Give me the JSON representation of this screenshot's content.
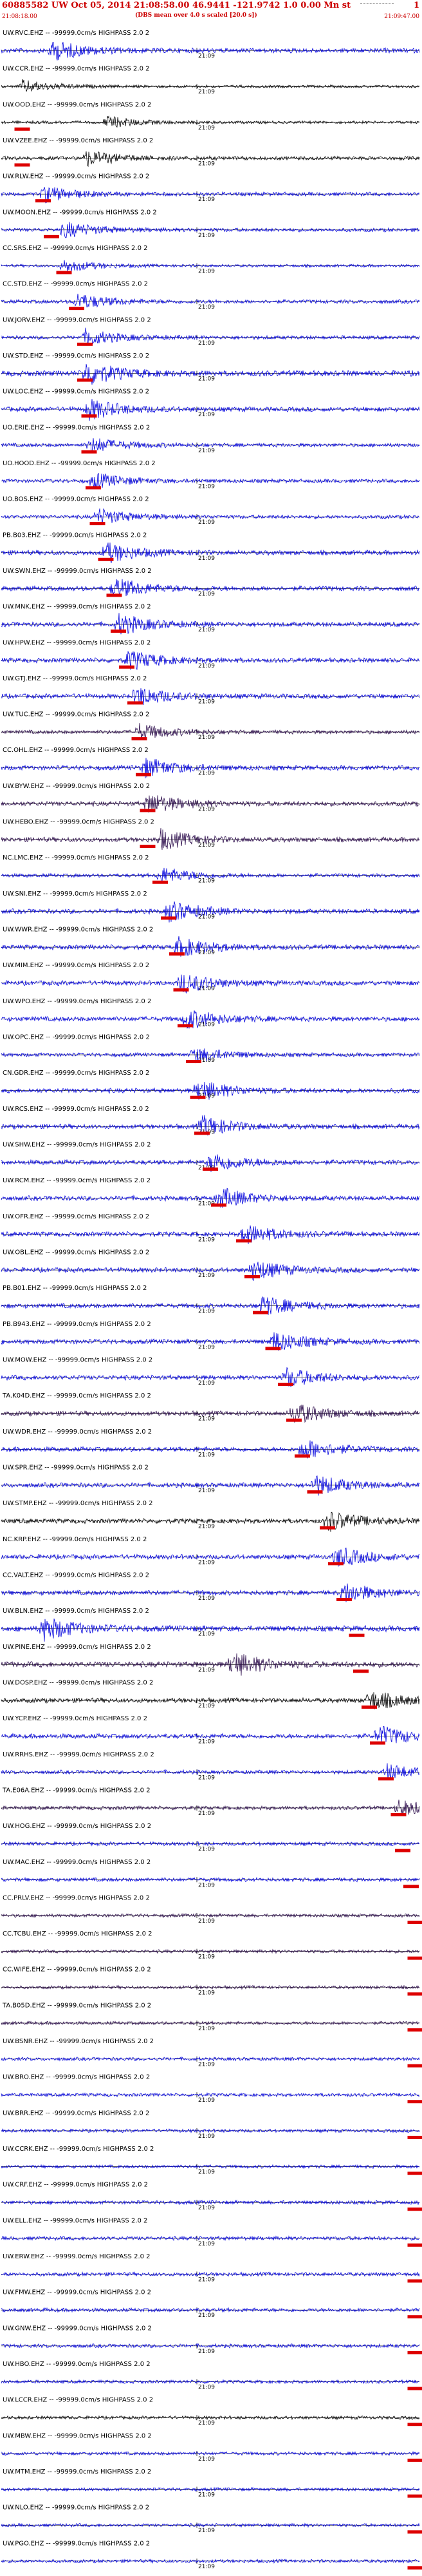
{
  "header": {
    "title": "60885582 UW Oct 05, 2014 21:08:58.00    46.9441  -121.9742   1.0 0.00 Mn st",
    "page": "1",
    "start_time": "21:08:18.00",
    "end_time": "21:09:47.00",
    "scale_note": "(DBS mean over 4.0 s scaled [20.0 s])"
  },
  "colors": {
    "blue": "#0000dd",
    "black": "#000000",
    "purple": "#2a0a4a",
    "red": "#dd0000"
  },
  "chart_data": {
    "type": "line",
    "title": "",
    "filter": "HIGHPASS 2.0 2",
    "time_mark": "21:09",
    "units": "-99999.0cm/s",
    "traces": [
      {
        "label": "UW.RVC.EHZ",
        "color": "blue",
        "amp": 0.5,
        "burst": 0.12,
        "pick": 0.0
      },
      {
        "label": "UW.CCR.EHZ",
        "color": "black",
        "amp": 0.3,
        "burst": 0.05,
        "pick": 0.0
      },
      {
        "label": "UW.OOD.EHZ",
        "color": "black",
        "amp": 0.3,
        "burst": 0.25,
        "pick": 0.05
      },
      {
        "label": "UW.VZEE.EHZ",
        "color": "black",
        "amp": 0.4,
        "burst": 0.2,
        "pick": 0.05
      },
      {
        "label": "UW.RLW.EHZ",
        "color": "blue",
        "amp": 0.4,
        "burst": 0.1,
        "pick": 0.1
      },
      {
        "label": "UW.MOON.EHZ",
        "color": "blue",
        "amp": 0.4,
        "burst": 0.15,
        "pick": 0.12
      },
      {
        "label": "CC.SRS.EHZ",
        "color": "blue",
        "amp": 0.3,
        "burst": 0.15,
        "pick": 0.15
      },
      {
        "label": "CC.STD.EHZ",
        "color": "blue",
        "amp": 0.4,
        "burst": 0.18,
        "pick": 0.18
      },
      {
        "label": "UW.JORV.EHZ",
        "color": "blue",
        "amp": 0.4,
        "burst": 0.2,
        "pick": 0.2
      },
      {
        "label": "UW.STD.EHZ",
        "color": "blue",
        "amp": 0.6,
        "burst": 0.2,
        "pick": 0.2
      },
      {
        "label": "UW.LOC.EHZ",
        "color": "blue",
        "amp": 0.5,
        "burst": 0.21,
        "pick": 0.21
      },
      {
        "label": "UO.ERIE.EHZ",
        "color": "blue",
        "amp": 0.4,
        "burst": 0.21,
        "pick": 0.21
      },
      {
        "label": "UO.HOOD.EHZ",
        "color": "blue",
        "amp": 0.4,
        "burst": 0.22,
        "pick": 0.22
      },
      {
        "label": "UO.BOS.EHZ",
        "color": "blue",
        "amp": 0.4,
        "burst": 0.23,
        "pick": 0.23
      },
      {
        "label": "PB.B03.EHZ",
        "color": "blue",
        "amp": 0.5,
        "burst": 0.25,
        "pick": 0.25
      },
      {
        "label": "UW.SWN.EHZ",
        "color": "blue",
        "amp": 0.5,
        "burst": 0.27,
        "pick": 0.27
      },
      {
        "label": "UW.MNK.EHZ",
        "color": "blue",
        "amp": 0.5,
        "burst": 0.28,
        "pick": 0.28
      },
      {
        "label": "UW.HPW.EHZ",
        "color": "blue",
        "amp": 0.5,
        "burst": 0.3,
        "pick": 0.3
      },
      {
        "label": "UW.GTJ.EHZ",
        "color": "blue",
        "amp": 0.5,
        "burst": 0.32,
        "pick": 0.32
      },
      {
        "label": "UW.TUC.EHZ",
        "color": "purple",
        "amp": 0.4,
        "burst": 0.33,
        "pick": 0.33
      },
      {
        "label": "CC.OHL.EHZ",
        "color": "blue",
        "amp": 0.5,
        "burst": 0.34,
        "pick": 0.34
      },
      {
        "label": "UW.BYW.EHZ",
        "color": "purple",
        "amp": 0.5,
        "burst": 0.35,
        "pick": 0.35
      },
      {
        "label": "UW.HEBO.EHZ",
        "color": "purple",
        "amp": 0.5,
        "burst": 0.38,
        "pick": 0.35
      },
      {
        "label": "NC.LMC.EHZ",
        "color": "blue",
        "amp": 0.4,
        "burst": 0.38,
        "pick": 0.38
      },
      {
        "label": "UW.SNI.EHZ",
        "color": "blue",
        "amp": 0.5,
        "burst": 0.4,
        "pick": 0.4
      },
      {
        "label": "UW.WWR.EHZ",
        "color": "blue",
        "amp": 0.5,
        "burst": 0.42,
        "pick": 0.42
      },
      {
        "label": "UW.MIM.EHZ",
        "color": "blue",
        "amp": 0.5,
        "burst": 0.43,
        "pick": 0.43
      },
      {
        "label": "UW.WPO.EHZ",
        "color": "blue",
        "amp": 0.5,
        "burst": 0.44,
        "pick": 0.44
      },
      {
        "label": "UW.OPC.EHZ",
        "color": "blue",
        "amp": 0.4,
        "burst": 0.46,
        "pick": 0.46
      },
      {
        "label": "CN.GDR.EHZ",
        "color": "blue",
        "amp": 0.5,
        "burst": 0.47,
        "pick": 0.47
      },
      {
        "label": "UW.RCS.EHZ",
        "color": "blue",
        "amp": 0.5,
        "burst": 0.48,
        "pick": 0.48
      },
      {
        "label": "UW.SHW.EHZ",
        "color": "blue",
        "amp": 0.5,
        "burst": 0.5,
        "pick": 0.5
      },
      {
        "label": "UW.RCM.EHZ",
        "color": "blue",
        "amp": 0.5,
        "burst": 0.52,
        "pick": 0.52
      },
      {
        "label": "UW.OFR.EHZ",
        "color": "blue",
        "amp": 0.5,
        "burst": 0.58,
        "pick": 0.58
      },
      {
        "label": "UW.OBL.EHZ",
        "color": "blue",
        "amp": 0.5,
        "burst": 0.6,
        "pick": 0.6
      },
      {
        "label": "PB.B01.EHZ",
        "color": "blue",
        "amp": 0.5,
        "burst": 0.62,
        "pick": 0.62
      },
      {
        "label": "PB.B943.EHZ",
        "color": "blue",
        "amp": 0.5,
        "burst": 0.65,
        "pick": 0.65
      },
      {
        "label": "UW.MOW.EHZ",
        "color": "blue",
        "amp": 0.5,
        "burst": 0.68,
        "pick": 0.68
      },
      {
        "label": "TA.K04D.EHZ",
        "color": "purple",
        "amp": 0.5,
        "burst": 0.7,
        "pick": 0.7
      },
      {
        "label": "UW.WDR.EHZ",
        "color": "blue",
        "amp": 0.5,
        "burst": 0.72,
        "pick": 0.72
      },
      {
        "label": "UW.SPR.EHZ",
        "color": "blue",
        "amp": 0.5,
        "burst": 0.75,
        "pick": 0.75
      },
      {
        "label": "UW.STMP.EHZ",
        "color": "black",
        "amp": 0.5,
        "burst": 0.78,
        "pick": 0.78
      },
      {
        "label": "NC.KRP.EHZ",
        "color": "blue",
        "amp": 0.5,
        "burst": 0.8,
        "pick": 0.8
      },
      {
        "label": "CC.VALT.EHZ",
        "color": "blue",
        "amp": 0.5,
        "burst": 0.82,
        "pick": 0.82
      },
      {
        "label": "UW.BLN.EHZ",
        "color": "blue",
        "amp": 0.6,
        "burst": 0.1,
        "pick": 0.85
      },
      {
        "label": "UW.PINE.EHZ",
        "color": "purple",
        "amp": 0.6,
        "burst": 0.55,
        "pick": 0.86
      },
      {
        "label": "UW.DOSP.EHZ",
        "color": "black",
        "amp": 0.5,
        "burst": 0.88,
        "pick": 0.88
      },
      {
        "label": "UW.YCP.EHZ",
        "color": "blue",
        "amp": 0.5,
        "burst": 0.9,
        "pick": 0.9
      },
      {
        "label": "UW.RRHS.EHZ",
        "color": "blue",
        "amp": 0.4,
        "burst": 0.92,
        "pick": 0.92
      },
      {
        "label": "TA.E06A.EHZ",
        "color": "purple",
        "amp": 0.4,
        "burst": 0.95,
        "pick": 0.95
      },
      {
        "label": "UW.HOG.EHZ",
        "color": "blue",
        "amp": 0.4,
        "burst": 0.0,
        "pick": 0.96
      },
      {
        "label": "UW.MAC.EHZ",
        "color": "blue",
        "amp": 0.4,
        "burst": 0.0,
        "pick": 0.98
      },
      {
        "label": "CC.PRLV.EHZ",
        "color": "purple",
        "amp": 0.35,
        "burst": 0.0,
        "pick": 0.99
      },
      {
        "label": "CC.TCBU.EHZ",
        "color": "purple",
        "amp": 0.35,
        "burst": 0.0,
        "pick": 0.99
      },
      {
        "label": "CC.WIFE.EHZ",
        "color": "purple",
        "amp": 0.35,
        "burst": 0.0,
        "pick": 0.99
      },
      {
        "label": "TA.B05D.EHZ",
        "color": "purple",
        "amp": 0.35,
        "burst": 0.0,
        "pick": 0.99
      },
      {
        "label": "UW.BSNR.EHZ",
        "color": "blue",
        "amp": 0.35,
        "burst": 0.0,
        "pick": 0.99
      },
      {
        "label": "UW.BRO.EHZ",
        "color": "blue",
        "amp": 0.35,
        "burst": 0.0,
        "pick": 0.99
      },
      {
        "label": "UW.BRR.EHZ",
        "color": "blue",
        "amp": 0.35,
        "burst": 0.0,
        "pick": 0.99
      },
      {
        "label": "UW.CCRK.EHZ",
        "color": "blue",
        "amp": 0.35,
        "burst": 0.0,
        "pick": 0.99
      },
      {
        "label": "UW.CRF.EHZ",
        "color": "blue",
        "amp": 0.4,
        "burst": 0.0,
        "pick": 0.99
      },
      {
        "label": "UW.ELL.EHZ",
        "color": "blue",
        "amp": 0.4,
        "burst": 0.0,
        "pick": 0.99
      },
      {
        "label": "UW.ERW.EHZ",
        "color": "blue",
        "amp": 0.4,
        "burst": 0.0,
        "pick": 0.99
      },
      {
        "label": "UW.FMW.EHZ",
        "color": "blue",
        "amp": 0.4,
        "burst": 0.0,
        "pick": 0.99
      },
      {
        "label": "UW.GNW.EHZ",
        "color": "blue",
        "amp": 0.4,
        "burst": 0.0,
        "pick": 0.99
      },
      {
        "label": "UW.HBO.EHZ",
        "color": "blue",
        "amp": 0.35,
        "burst": 0.0,
        "pick": 0.99
      },
      {
        "label": "UW.LCCR.EHZ",
        "color": "black",
        "amp": 0.35,
        "burst": 0.0,
        "pick": 0.99
      },
      {
        "label": "UW.MBW.EHZ",
        "color": "blue",
        "amp": 0.35,
        "burst": 0.0,
        "pick": 0.99
      },
      {
        "label": "UW.MTM.EHZ",
        "color": "blue",
        "amp": 0.35,
        "burst": 0.0,
        "pick": 0.99
      },
      {
        "label": "UW.NLO.EHZ",
        "color": "blue",
        "amp": 0.35,
        "burst": 0.0,
        "pick": 0.99
      },
      {
        "label": "UW.PGO.EHZ",
        "color": "blue",
        "amp": 0.35,
        "burst": 0.0,
        "pick": 0.99
      }
    ]
  }
}
